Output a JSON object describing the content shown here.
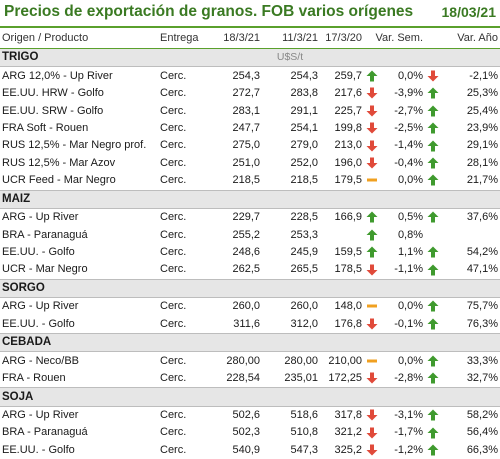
{
  "title": "Precios de exportación de granos. FOB varios orígenes",
  "date": "18/03/21",
  "columns": [
    "Origen / Producto",
    "Entrega",
    "18/3/21",
    "11/3/21",
    "17/3/20",
    "Var. Sem.",
    "Var. Año"
  ],
  "colors": {
    "up": "#3f9a2e",
    "down": "#e04a3a",
    "flat": "#f0a020",
    "accent": "#5aa02c"
  },
  "sections": [
    {
      "name": "TRIGO",
      "unit": "U$S/t",
      "rows": [
        {
          "origin": "ARG 12,0% - Up River",
          "entrega": "Cerc.",
          "p1": "254,3",
          "p2": "254,3",
          "p3": "259,7",
          "icon_w": "up-arrow-icon",
          "var_sem": "0,0%",
          "icon_a": "down-arrow-icon",
          "var_ano": "-2,1%"
        },
        {
          "origin": "EE.UU. HRW - Golfo",
          "entrega": "Cerc.",
          "p1": "272,7",
          "p2": "283,8",
          "p3": "217,6",
          "icon_w": "down-arrow-icon",
          "var_sem": "-3,9%",
          "icon_a": "up-arrow-icon",
          "var_ano": "25,3%"
        },
        {
          "origin": "EE.UU. SRW - Golfo",
          "entrega": "Cerc.",
          "p1": "283,1",
          "p2": "291,1",
          "p3": "225,7",
          "icon_w": "down-arrow-icon",
          "var_sem": "-2,7%",
          "icon_a": "up-arrow-icon",
          "var_ano": "25,4%"
        },
        {
          "origin": "FRA Soft - Rouen",
          "entrega": "Cerc.",
          "p1": "247,7",
          "p2": "254,1",
          "p3": "199,8",
          "icon_w": "down-arrow-icon",
          "var_sem": "-2,5%",
          "icon_a": "up-arrow-icon",
          "var_ano": "23,9%"
        },
        {
          "origin": "RUS 12,5% - Mar Negro prof.",
          "entrega": "Cerc.",
          "p1": "275,0",
          "p2": "279,0",
          "p3": "213,0",
          "icon_w": "down-arrow-icon",
          "var_sem": "-1,4%",
          "icon_a": "up-arrow-icon",
          "var_ano": "29,1%"
        },
        {
          "origin": "RUS 12,5% - Mar Azov",
          "entrega": "Cerc.",
          "p1": "251,0",
          "p2": "252,0",
          "p3": "196,0",
          "icon_w": "down-arrow-icon",
          "var_sem": "-0,4%",
          "icon_a": "up-arrow-icon",
          "var_ano": "28,1%"
        },
        {
          "origin": "UCR Feed - Mar Negro",
          "entrega": "Cerc.",
          "p1": "218,5",
          "p2": "218,5",
          "p3": "179,5",
          "icon_w": "flat-dash-icon",
          "var_sem": "0,0%",
          "icon_a": "up-arrow-icon",
          "var_ano": "21,7%"
        }
      ]
    },
    {
      "name": "MAIZ",
      "unit": "",
      "rows": [
        {
          "origin": "ARG - Up River",
          "entrega": "Cerc.",
          "p1": "229,7",
          "p2": "228,5",
          "p3": "166,9",
          "icon_w": "up-arrow-icon",
          "var_sem": "0,5%",
          "icon_a": "up-arrow-icon",
          "var_ano": "37,6%"
        },
        {
          "origin": "BRA - Paranaguá",
          "entrega": "Cerc.",
          "p1": "255,2",
          "p2": "253,3",
          "p3": "",
          "icon_w": "up-arrow-icon",
          "var_sem": "0,8%",
          "icon_a": "",
          "var_ano": ""
        },
        {
          "origin": "EE.UU. - Golfo",
          "entrega": "Cerc.",
          "p1": "248,6",
          "p2": "245,9",
          "p3": "159,5",
          "icon_w": "up-arrow-icon",
          "var_sem": "1,1%",
          "icon_a": "up-arrow-icon",
          "var_ano": "54,2%"
        },
        {
          "origin": "UCR - Mar Negro",
          "entrega": "Cerc.",
          "p1": "262,5",
          "p2": "265,5",
          "p3": "178,5",
          "icon_w": "down-arrow-icon",
          "var_sem": "-1,1%",
          "icon_a": "up-arrow-icon",
          "var_ano": "47,1%"
        }
      ]
    },
    {
      "name": "SORGO",
      "unit": "",
      "rows": [
        {
          "origin": "ARG - Up River",
          "entrega": "Cerc.",
          "p1": "260,0",
          "p2": "260,0",
          "p3": "148,0",
          "icon_w": "flat-dash-icon",
          "var_sem": "0,0%",
          "icon_a": "up-arrow-icon",
          "var_ano": "75,7%"
        },
        {
          "origin": "EE.UU. - Golfo",
          "entrega": "Cerc.",
          "p1": "311,6",
          "p2": "312,0",
          "p3": "176,8",
          "icon_w": "down-arrow-icon",
          "var_sem": "-0,1%",
          "icon_a": "up-arrow-icon",
          "var_ano": "76,3%"
        }
      ]
    },
    {
      "name": "CEBADA",
      "unit": "",
      "rows": [
        {
          "origin": "ARG - Neco/BB",
          "entrega": "Cerc.",
          "p1": "280,00",
          "p2": "280,00",
          "p3": "210,00",
          "icon_w": "flat-dash-icon",
          "var_sem": "0,0%",
          "icon_a": "up-arrow-icon",
          "var_ano": "33,3%"
        },
        {
          "origin": "FRA - Rouen",
          "entrega": "Cerc.",
          "p1": "228,54",
          "p2": "235,01",
          "p3": "172,25",
          "icon_w": "down-arrow-icon",
          "var_sem": "-2,8%",
          "icon_a": "up-arrow-icon",
          "var_ano": "32,7%"
        }
      ]
    },
    {
      "name": "SOJA",
      "unit": "",
      "rows": [
        {
          "origin": "ARG - Up River",
          "entrega": "Cerc.",
          "p1": "502,6",
          "p2": "518,6",
          "p3": "317,8",
          "icon_w": "down-arrow-icon",
          "var_sem": "-3,1%",
          "icon_a": "up-arrow-icon",
          "var_ano": "58,2%"
        },
        {
          "origin": "BRA - Paranaguá",
          "entrega": "Cerc.",
          "p1": "502,3",
          "p2": "510,8",
          "p3": "321,2",
          "icon_w": "down-arrow-icon",
          "var_sem": "-1,7%",
          "icon_a": "up-arrow-icon",
          "var_ano": "56,4%"
        },
        {
          "origin": "EE.UU. - Golfo",
          "entrega": "Cerc.",
          "p1": "540,9",
          "p2": "547,3",
          "p3": "325,2",
          "icon_w": "down-arrow-icon",
          "var_sem": "-1,2%",
          "icon_a": "up-arrow-icon",
          "var_ano": "66,3%"
        }
      ]
    }
  ]
}
